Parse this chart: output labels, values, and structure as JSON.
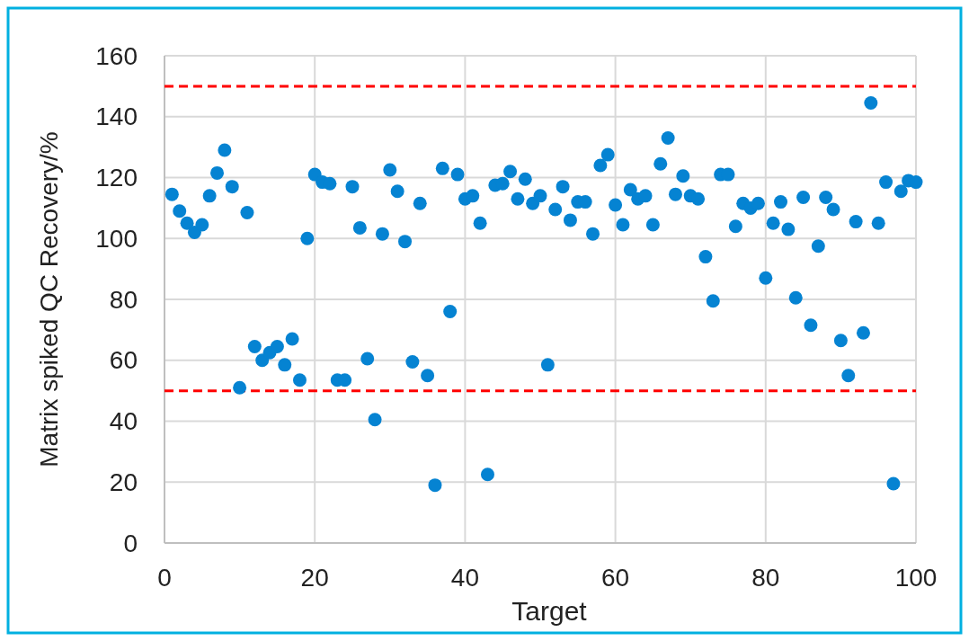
{
  "chart_data": {
    "type": "scatter",
    "xlabel": "Target",
    "ylabel": "Matrix spiked QC Recovery/%",
    "xlim": [
      0,
      100
    ],
    "xticks": [
      0,
      20,
      40,
      60,
      80,
      100
    ],
    "ylim": [
      0,
      160
    ],
    "yticks": [
      0,
      20,
      40,
      60,
      80,
      100,
      120,
      140,
      160
    ],
    "grid": true,
    "marker": "circle",
    "ref_lines": [
      {
        "axis": "y",
        "value": 150,
        "color": "#ff0000",
        "line_style": "dashed"
      },
      {
        "axis": "y",
        "value": 50,
        "color": "#ff0000",
        "line_style": "dashed"
      }
    ],
    "series": [
      {
        "color": "#0583d2",
        "x": [
          1,
          2,
          3,
          4,
          5,
          6,
          7,
          8,
          9,
          10,
          11,
          12,
          13,
          14,
          15,
          16,
          17,
          18,
          19,
          20,
          21,
          22,
          23,
          24,
          25,
          26,
          27,
          28,
          29,
          30,
          31,
          32,
          33,
          34,
          35,
          36,
          37,
          38,
          39,
          40,
          41,
          42,
          43,
          44,
          45,
          46,
          47,
          48,
          49,
          50,
          51,
          52,
          53,
          54,
          55,
          56,
          57,
          58,
          59,
          60,
          61,
          62,
          63,
          64,
          65,
          66,
          67,
          68,
          69,
          70,
          71,
          72,
          73,
          74,
          75,
          76,
          77,
          78,
          79,
          80,
          81,
          82,
          83,
          84,
          85,
          86,
          87,
          88,
          89,
          90,
          91,
          92,
          93,
          94,
          95,
          96,
          97,
          98,
          99,
          100
        ],
        "values": [
          114.5,
          109,
          105,
          102,
          104.5,
          114,
          121.5,
          129,
          117,
          51,
          108.5,
          64.5,
          60,
          62.5,
          64.5,
          58.5,
          67,
          53.5,
          100,
          121,
          118.5,
          118,
          53.5,
          53.5,
          117,
          103.5,
          60.5,
          40.5,
          101.5,
          122.5,
          115.5,
          99,
          59.5,
          111.5,
          55,
          19,
          123,
          76,
          121,
          113,
          114,
          105,
          22.5,
          117.5,
          118,
          122,
          113,
          119.5,
          111.5,
          114,
          58.5,
          109.5,
          117,
          106,
          112,
          112,
          101.5,
          124,
          127.5,
          111,
          104.5,
          116,
          113,
          114,
          104.5,
          124.5,
          133,
          114.5,
          120.5,
          114,
          113,
          94,
          79.5,
          121,
          121,
          104,
          111.5,
          110,
          111.5,
          87,
          105,
          112,
          103,
          80.5,
          113.5,
          71.5,
          97.5,
          113.5,
          109.5,
          66.5,
          55,
          105.5,
          69,
          144.5,
          105,
          118.5,
          19.5,
          115.5,
          119,
          118.5
        ]
      }
    ]
  }
}
